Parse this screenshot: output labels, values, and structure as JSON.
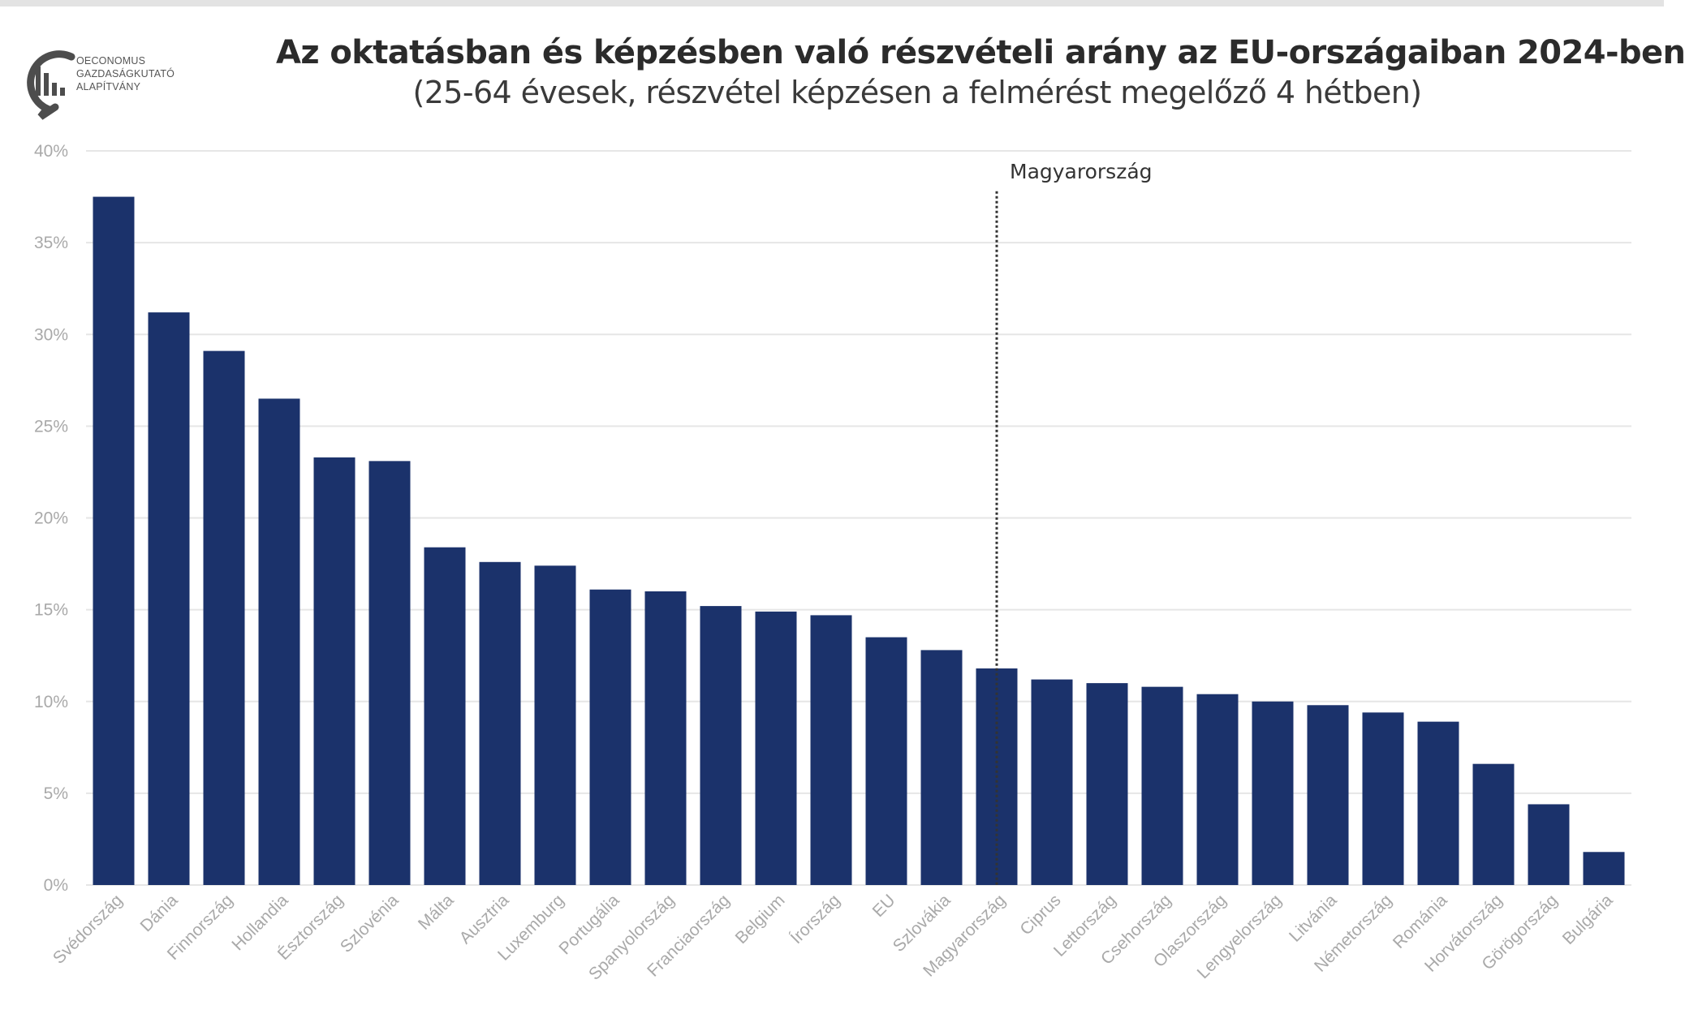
{
  "header": {
    "title": "Az oktatásban és képzésben való részvételi arány az EU-országaiban 2024-ben",
    "subtitle": "(25-64 évesek, részvétel képzésen a felmérést megelőző 4 hétben)"
  },
  "logo": {
    "lines": [
      "OECONOMUS",
      "GAZDASÁGKUTATÓ",
      "ALAPÍTVÁNY"
    ],
    "icon": "oeconomus-logo-icon"
  },
  "colors": {
    "bar": "#1b326b",
    "grid": "#e6e6e6",
    "tick_text": "#a9a9a9",
    "reference_line": "#333333"
  },
  "chart_data": {
    "type": "bar",
    "categories": [
      "Svédország",
      "Dánia",
      "Finnország",
      "Hollandia",
      "Észtország",
      "Szlovénia",
      "Málta",
      "Ausztria",
      "Luxemburg",
      "Portugália",
      "Spanyolország",
      "Franciaország",
      "Belgium",
      "Írország",
      "EU",
      "Szlovákia",
      "Magyarország",
      "Ciprus",
      "Lettország",
      "Csehország",
      "Olaszország",
      "Lengyelország",
      "Litvánia",
      "Németország",
      "Románia",
      "Horvátország",
      "Görögország",
      "Bulgária"
    ],
    "values": [
      37.5,
      31.2,
      29.1,
      26.5,
      23.3,
      23.1,
      18.4,
      17.6,
      17.4,
      16.1,
      16.0,
      15.2,
      14.9,
      14.7,
      13.5,
      12.8,
      11.8,
      11.2,
      11.0,
      10.8,
      10.4,
      10.0,
      9.8,
      9.4,
      8.9,
      6.6,
      4.4,
      1.8
    ],
    "title": "Az oktatásban és képzésben való részvételi arány az EU-országaiban 2024-ben",
    "subtitle": "(25-64 évesek, részvétel képzésen a felmérést megelőző 4 hétben)",
    "xlabel": "",
    "ylabel": "",
    "ylim": [
      0,
      40
    ],
    "yticks": [
      0,
      5,
      10,
      15,
      20,
      25,
      30,
      35,
      40
    ],
    "ytick_labels": [
      "0%",
      "5%",
      "10%",
      "15%",
      "20%",
      "25%",
      "30%",
      "35%",
      "40%"
    ],
    "grid": true,
    "reference_line": {
      "category": "Magyarország",
      "label": "Magyarország",
      "style": "dotted"
    }
  }
}
